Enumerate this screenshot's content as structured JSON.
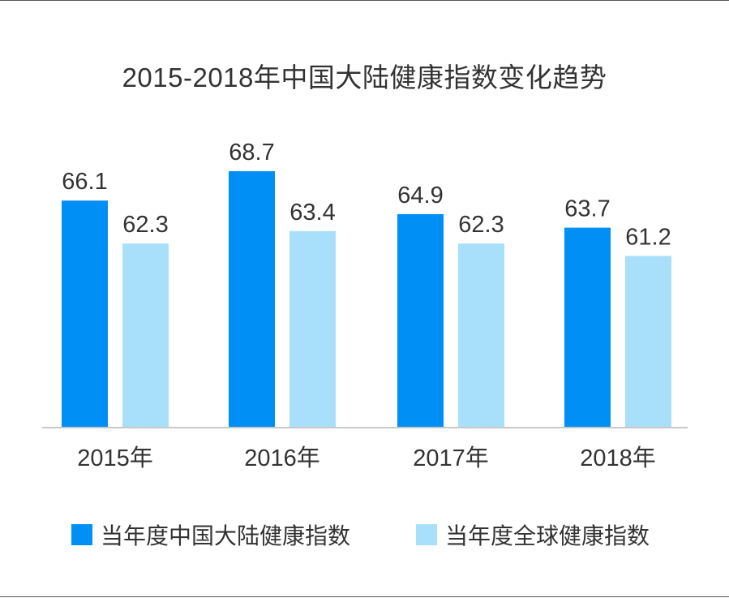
{
  "chart_data": {
    "type": "bar",
    "title": "2015-2018年中国大陆健康指数变化趋势",
    "categories": [
      "2015年",
      "2016年",
      "2017年",
      "2018年"
    ],
    "series": [
      {
        "name": "当年度中国大陆健康指数",
        "values": [
          66.1,
          68.7,
          64.9,
          63.7
        ],
        "color": "#0090f5"
      },
      {
        "name": "当年度全球健康指数",
        "values": [
          62.3,
          63.4,
          62.3,
          61.2
        ],
        "color": "#a8e0fb"
      }
    ],
    "ylim": [
      46,
      70
    ],
    "grid": false,
    "legend_position": "bottom"
  }
}
